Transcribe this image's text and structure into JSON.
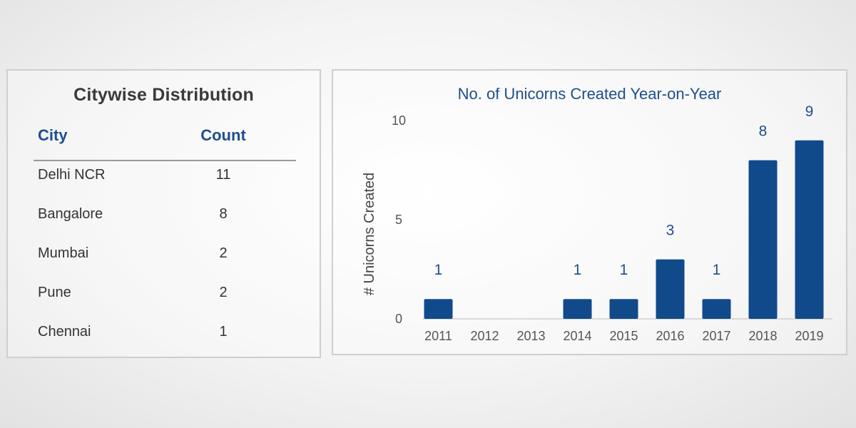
{
  "table": {
    "title": "Citywise Distribution",
    "headers": [
      "City",
      "Count"
    ],
    "rows": [
      {
        "city": "Delhi NCR",
        "count": "11"
      },
      {
        "city": "Bangalore",
        "count": "8"
      },
      {
        "city": "Mumbai",
        "count": "2"
      },
      {
        "city": "Pune",
        "count": "2"
      },
      {
        "city": "Chennai",
        "count": "1"
      }
    ]
  },
  "chart_data": {
    "type": "bar",
    "title": "No. of Unicorns Created Year-on-Year",
    "xlabel": "",
    "ylabel": "# Unicorns Created",
    "categories": [
      "2011",
      "2012",
      "2013",
      "2014",
      "2015",
      "2016",
      "2017",
      "2018",
      "2019"
    ],
    "values": [
      1,
      0,
      0,
      1,
      1,
      3,
      1,
      8,
      9
    ],
    "data_labels": [
      "1",
      "",
      "",
      "1",
      "1",
      "3",
      "1",
      "8",
      "9"
    ],
    "ylim": [
      0,
      10
    ],
    "yticks": [
      0,
      5,
      10
    ],
    "grid": false,
    "bar_color": "#114a8b",
    "text_color": "#1f4e8c"
  }
}
